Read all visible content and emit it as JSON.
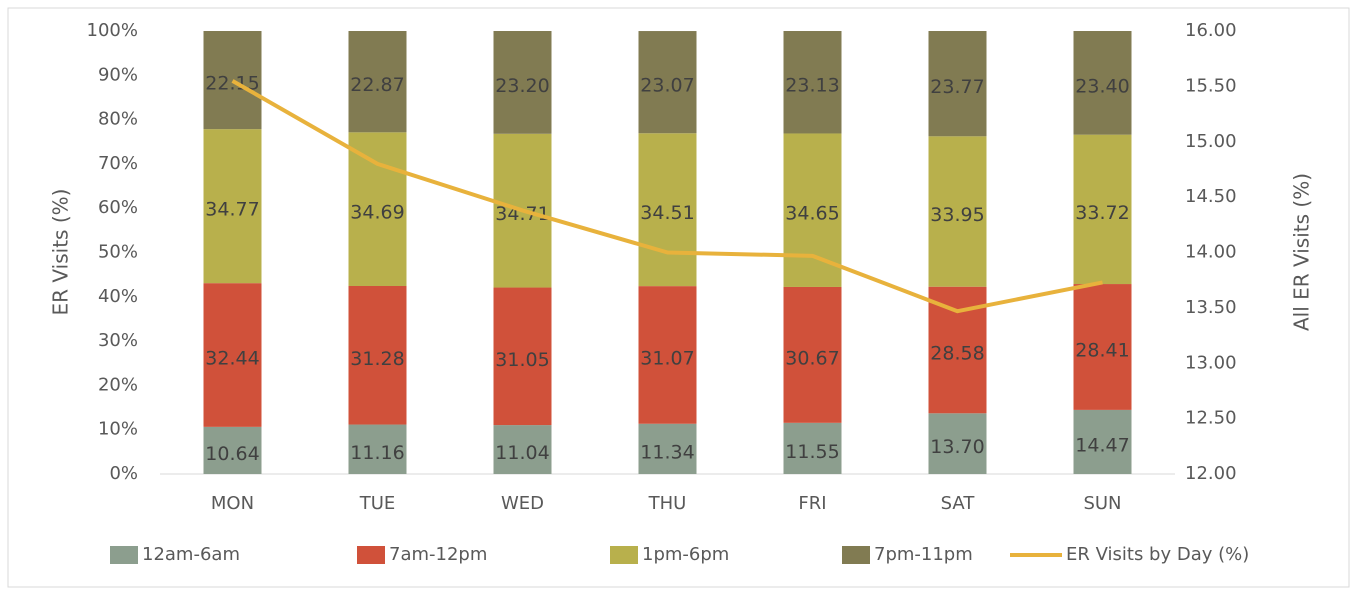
{
  "chart_data": {
    "type": "stacked_bar_line",
    "categories": [
      "MON",
      "TUE",
      "WED",
      "THU",
      "FRI",
      "SAT",
      "SUN"
    ],
    "y_label": "ER Visits (%)",
    "y2_label": "All ER Visits (%)",
    "series": [
      {
        "name": "12am-6am",
        "color": "#8c9e8e",
        "values": [
          10.64,
          11.16,
          11.04,
          11.34,
          11.55,
          13.7,
          14.47
        ],
        "value_labels": [
          "10.64",
          "11.16",
          "11.04",
          "11.34",
          "11.55",
          "13.70",
          "14.47"
        ]
      },
      {
        "name": "7am-12pm",
        "color": "#d0513a",
        "values": [
          32.44,
          31.28,
          31.05,
          31.07,
          30.67,
          28.58,
          28.41
        ],
        "value_labels": [
          "32.44",
          "31.28",
          "31.05",
          "31.07",
          "30.67",
          "28.58",
          "28.41"
        ]
      },
      {
        "name": "1pm-6pm",
        "color": "#b8b04c",
        "values": [
          34.77,
          34.69,
          34.71,
          34.51,
          34.65,
          33.95,
          33.72
        ],
        "value_labels": [
          "34.77",
          "34.69",
          "34.71",
          "34.51",
          "34.65",
          "33.95",
          "33.72"
        ]
      },
      {
        "name": "7pm-11pm",
        "color": "#817b52",
        "values": [
          22.15,
          22.87,
          23.2,
          23.07,
          23.13,
          23.77,
          23.4
        ],
        "value_labels": [
          "22.15",
          "22.87",
          "23.20",
          "23.07",
          "23.13",
          "23.77",
          "23.40"
        ]
      },
      {
        "name": "ER Visits by Day (%)",
        "color": "#e8b23c",
        "axis": "y2",
        "values": [
          15.55,
          14.8,
          14.38,
          14.0,
          13.97,
          13.47,
          13.73
        ]
      }
    ],
    "ylim": [
      0,
      100
    ],
    "yticks": [
      {
        "value": 0,
        "label": "0%"
      },
      {
        "value": 10,
        "label": "10%"
      },
      {
        "value": 20,
        "label": "20%"
      },
      {
        "value": 30,
        "label": "30%"
      },
      {
        "value": 40,
        "label": "40%"
      },
      {
        "value": 50,
        "label": "50%"
      },
      {
        "value": 60,
        "label": "60%"
      },
      {
        "value": 70,
        "label": "70%"
      },
      {
        "value": 80,
        "label": "80%"
      },
      {
        "value": 90,
        "label": "90%"
      },
      {
        "value": 100,
        "label": "100%"
      }
    ],
    "y2lim": [
      12,
      16
    ],
    "y2ticks": [
      {
        "value": 12,
        "label": "12.00"
      },
      {
        "value": 12.5,
        "label": "12.50"
      },
      {
        "value": 13,
        "label": "13.00"
      },
      {
        "value": 13.5,
        "label": "13.50"
      },
      {
        "value": 14,
        "label": "14.00"
      },
      {
        "value": 14.5,
        "label": "14.50"
      },
      {
        "value": 15,
        "label": "15.00"
      },
      {
        "value": 15.5,
        "label": "15.50"
      },
      {
        "value": 16,
        "label": "16.00"
      }
    ],
    "legend": "bottom"
  }
}
